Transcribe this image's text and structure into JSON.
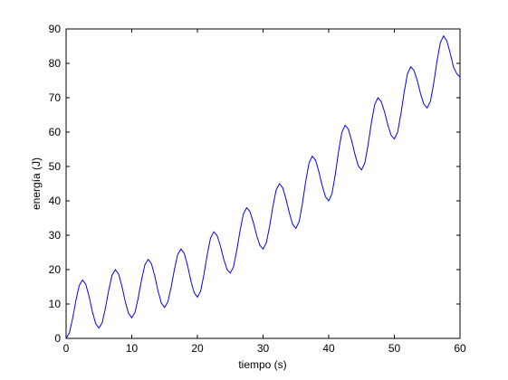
{
  "chart_data": {
    "type": "line",
    "xlabel": "tiempo (s)",
    "ylabel": "energía (J)",
    "x": [
      0,
      0.5,
      1,
      1.5,
      2,
      2.5,
      3,
      3.5,
      4,
      4.5,
      5,
      5.5,
      6,
      6.5,
      7,
      7.5,
      8,
      8.5,
      9,
      9.5,
      10,
      10.5,
      11,
      11.5,
      12,
      12.5,
      13,
      13.5,
      14,
      14.5,
      15,
      15.5,
      16,
      16.5,
      17,
      17.5,
      18,
      18.5,
      19,
      19.5,
      20,
      20.5,
      21,
      21.5,
      22,
      22.5,
      23,
      23.5,
      24,
      24.5,
      25,
      25.5,
      26,
      26.5,
      27,
      27.5,
      28,
      28.5,
      29,
      29.5,
      30,
      30.5,
      31,
      31.5,
      32,
      32.5,
      33,
      33.5,
      34,
      34.5,
      35,
      35.5,
      36,
      36.5,
      37,
      37.5,
      38,
      38.5,
      39,
      39.5,
      40,
      40.5,
      41,
      41.5,
      42,
      42.5,
      43,
      43.5,
      44,
      44.5,
      45,
      45.5,
      46,
      46.5,
      47,
      47.5,
      48,
      48.5,
      49,
      49.5,
      50,
      50.5,
      51,
      51.5,
      52,
      52.5,
      53,
      53.5,
      54,
      54.5,
      55,
      55.5,
      56,
      56.5,
      57,
      57.5,
      58,
      58.5,
      59,
      59.5,
      60
    ],
    "series": [
      {
        "color": "#0000ff",
        "values": [
          0,
          1.6,
          5.9,
          11.1,
          15.4,
          17,
          15.7,
          12.2,
          7.8,
          4.3,
          3,
          4.6,
          8.9,
          14.1,
          18.4,
          20,
          18.7,
          15.2,
          10.8,
          7.3,
          6,
          7.6,
          11.9,
          17.1,
          21.4,
          23,
          21.7,
          18.2,
          13.8,
          10.3,
          9,
          10.6,
          14.9,
          20.1,
          24.4,
          26,
          24.7,
          21.2,
          16.8,
          13.3,
          12,
          13.8,
          18.6,
          24.4,
          29.2,
          31,
          29.9,
          26.9,
          23.1,
          20.1,
          19,
          20.8,
          25.6,
          31.4,
          36.2,
          38,
          36.9,
          33.9,
          30.1,
          27.1,
          26,
          27.8,
          32.6,
          38.4,
          43.2,
          45,
          43.8,
          40.5,
          36.5,
          33.2,
          32,
          34,
          39.3,
          45.7,
          51,
          53,
          51.8,
          48.5,
          44.5,
          41.2,
          40,
          42.1,
          47.6,
          54.4,
          59.9,
          62,
          60.8,
          57.5,
          53.5,
          50.2,
          49,
          51,
          56.3,
          62.7,
          68,
          70,
          68.9,
          65.9,
          62.1,
          59.1,
          58,
          60,
          65.3,
          71.7,
          77,
          79,
          77.9,
          74.9,
          71.1,
          68.1,
          67,
          69,
          74.3,
          80.7,
          86,
          88,
          86.5,
          83,
          79,
          77,
          76
        ]
      }
    ],
    "xlim": [
      0,
      60
    ],
    "xticks": [
      0,
      10,
      20,
      30,
      40,
      50,
      60
    ],
    "ylim": [
      0,
      90
    ],
    "yticks": [
      0,
      10,
      20,
      30,
      40,
      50,
      60,
      70,
      80,
      90
    ],
    "grid": false
  }
}
